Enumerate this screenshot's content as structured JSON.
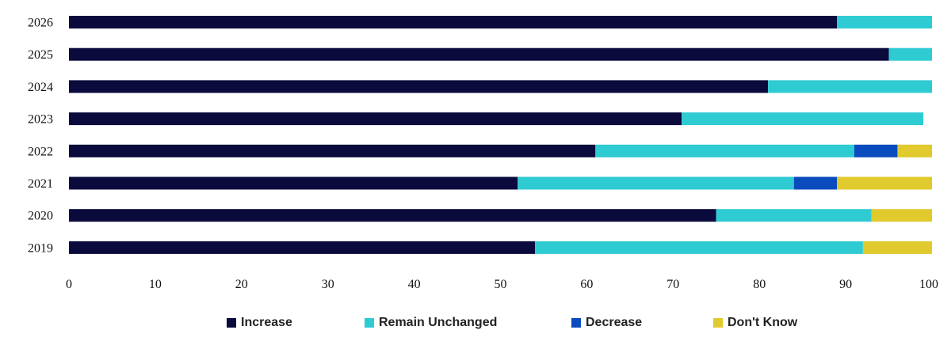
{
  "chart_data": {
    "type": "bar",
    "orientation": "horizontal",
    "stacked": true,
    "categories": [
      "2026",
      "2025",
      "2024",
      "2023",
      "2022",
      "2021",
      "2020",
      "2019"
    ],
    "series": [
      {
        "name": "Increase",
        "color": "#0a0a3c",
        "values": [
          89,
          95,
          81,
          71,
          61,
          52,
          75,
          54
        ]
      },
      {
        "name": "Remain Unchanged",
        "color": "#2ecbd3",
        "values": [
          11,
          5,
          19,
          28,
          30,
          32,
          18,
          38
        ]
      },
      {
        "name": "Decrease",
        "color": "#0a4bbd",
        "values": [
          0,
          0,
          0,
          0,
          5,
          5,
          0,
          0
        ]
      },
      {
        "name": "Don't Know",
        "color": "#e0ca2e",
        "values": [
          0,
          0,
          0,
          0,
          4,
          11,
          7,
          8
        ]
      }
    ],
    "xlim": [
      0,
      100
    ],
    "xticks": [
      "0",
      "10",
      "20",
      "30",
      "40",
      "50",
      "60",
      "70",
      "80",
      "90",
      "100"
    ],
    "grid": false,
    "legend_position": "bottom",
    "title": "",
    "xlabel": "",
    "ylabel": ""
  }
}
